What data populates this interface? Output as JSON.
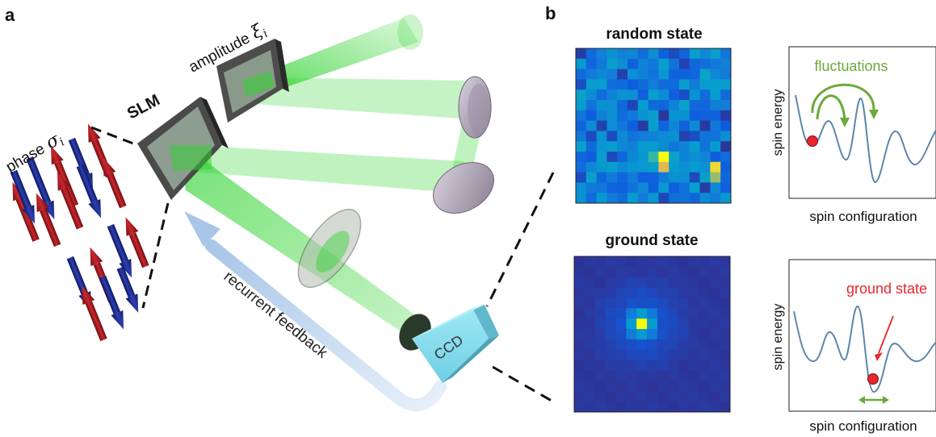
{
  "panel_a": {
    "label": "a",
    "slm_label": "SLM",
    "amplitude_label": "amplitude",
    "amplitude_symbol": "ξ",
    "amplitude_sub": "i",
    "phase_label": "phase",
    "phase_symbol": "σ",
    "phase_sub": "i",
    "ccd_label": "CCD",
    "feedback_label": "recurrent feedback",
    "colors": {
      "beam": "#2fd32f",
      "spin_up": "#b01e24",
      "spin_down": "#1f2f9a",
      "ccd": "#8ee0ef",
      "feedback": "#b7cfea"
    }
  },
  "panel_b": {
    "label": "b",
    "random_title": "random state",
    "ground_title": "ground state",
    "plot_top": {
      "fluctuations_label": "fluctuations",
      "ylabel": "spin energy",
      "xlabel": "spin configuration"
    },
    "plot_bottom": {
      "ground_label": "ground state",
      "ylabel": "spin energy",
      "xlabel": "spin configuration"
    },
    "colors": {
      "curve": "#5b87ad",
      "fluctuation_arrow": "#6aaa3a",
      "ball": "#e8262b",
      "ground_label": "#e8262b"
    }
  }
}
